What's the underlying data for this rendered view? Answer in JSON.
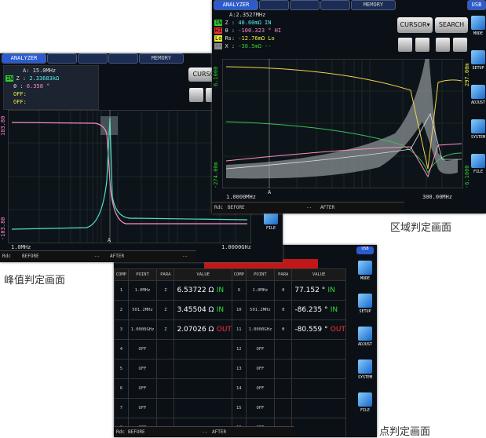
{
  "captions": {
    "area": "区域判定画面",
    "peak": "峰值判定画面",
    "point": "点判定画面"
  },
  "peak_screen": {
    "tab": "ANALYZER",
    "memory": "MEMORY",
    "freq": "A:  15.0MHz",
    "z_tag": "IN",
    "z_label": "Z :",
    "z_value": "2.33683kΩ",
    "theta_label": "θ :",
    "theta_value": "6.358 °",
    "off1": "OFF:",
    "off2": "OFF:",
    "cursor": "CURSOR",
    "y_top": "103.80",
    "y_bottom": "-103.80",
    "marker": "A",
    "x_left": "1.0MHz",
    "x_right": "1.0000GHz",
    "file": "FILE",
    "rdc": "Rdc",
    "before": "BEFORE",
    "dash1": "--",
    "after": "AFTER",
    "dash2": "--"
  },
  "area_screen": {
    "tab": "ANALYZER",
    "memory": "MEMORY",
    "usb": "USB",
    "freq": "A:2.3527MHz",
    "l1_tag": "IN",
    "l1_label": "Z :",
    "l1_value": "40.60mΩ IN",
    "l2_tag": "HI",
    "l2_label": "θ :",
    "l2_value": "-100.323 ° HI",
    "l3_tag": "Lo",
    "l3_label": "Rs:",
    "l3_value": "-12.76mΩ Lo",
    "l4_tag": "--",
    "l4_label": "X :",
    "l4_value": "-38.5mΩ --",
    "cursor": "CURSOR▾",
    "search": "SEARCH",
    "mode": "MODE",
    "setup": "SETUP",
    "adjust": "ADJUST",
    "system": "SYSTEM",
    "file": "FILE",
    "y_left_top": "6.1000",
    "y_left_bottom": "-274.00m",
    "y_right_top": "297.00m",
    "y_right_bottom": "-6.1000",
    "marker": "A",
    "x_left": "1.0000MHz",
    "x_right": "300.00MHz",
    "rdc": "Rdc",
    "before": "BEFORE",
    "dash1": "--",
    "after": "AFTER"
  },
  "point_screen": {
    "usb": "USB",
    "mode": "MODE",
    "setup": "SETUP",
    "adjust": "ADJUST",
    "system": "SYSTEM",
    "file": "FILE",
    "headers": [
      "COMP",
      "POINT",
      "PARA",
      "VALUE"
    ],
    "rows": [
      {
        "left": {
          "comp": "1",
          "point": "1.0MHz",
          "para": "Z",
          "value": "6.53722 Ω",
          "judge": "IN",
          "judge_color": "#33dd33"
        },
        "right": {
          "comp": "9",
          "point": "1.0MHz",
          "para": "θ",
          "value": "77.152 °",
          "judge": "IN",
          "judge_color": "#33dd33"
        }
      },
      {
        "left": {
          "comp": "2",
          "point": "501.2MHz",
          "para": "Z",
          "value": "3.45504 Ω",
          "judge": "IN",
          "judge_color": "#33dd33"
        },
        "right": {
          "comp": "10",
          "point": "501.2MHz",
          "para": "θ",
          "value": "-86.235 °",
          "judge": "IN",
          "judge_color": "#33dd33"
        }
      },
      {
        "left": {
          "comp": "3",
          "point": "1.0000GHz",
          "para": "Z",
          "value": "2.07026 Ω",
          "judge": "OUT",
          "judge_color": "#ff3333"
        },
        "right": {
          "comp": "11",
          "point": "1.0000GHz",
          "para": "θ",
          "value": "-80.559 °",
          "judge": "OUT",
          "judge_color": "#ff3333"
        }
      },
      {
        "left": {
          "comp": "4",
          "point": "OFF"
        },
        "right": {
          "comp": "12",
          "point": "OFF"
        }
      },
      {
        "left": {
          "comp": "5",
          "point": "OFF"
        },
        "right": {
          "comp": "13",
          "point": "OFF"
        }
      },
      {
        "left": {
          "comp": "6",
          "point": "OFF"
        },
        "right": {
          "comp": "14",
          "point": "OFF"
        }
      },
      {
        "left": {
          "comp": "7",
          "point": "OFF"
        },
        "right": {
          "comp": "15",
          "point": "OFF"
        }
      },
      {
        "left": {
          "comp": "8",
          "point": "OFF"
        },
        "right": {
          "comp": "16",
          "point": "OFF"
        }
      }
    ],
    "rdc": "Rdc",
    "before": "BEFORE",
    "dash1": "--",
    "after": "AFTER"
  }
}
